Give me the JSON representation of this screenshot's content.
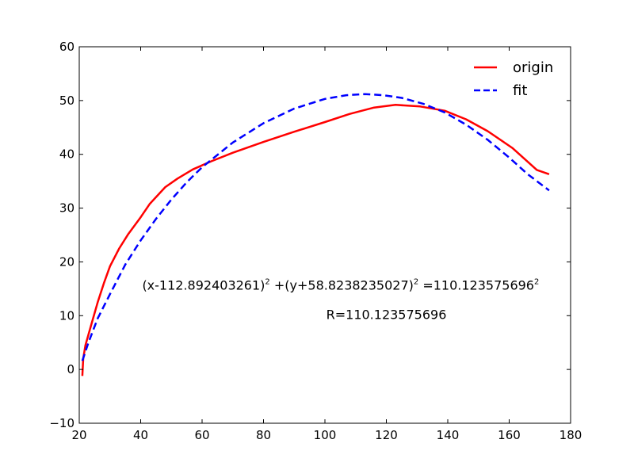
{
  "chart_data": {
    "type": "line",
    "title": "",
    "xlabel": "",
    "ylabel": "",
    "xlim": [
      20,
      180
    ],
    "ylim": [
      -10,
      60
    ],
    "xticks": [
      20,
      40,
      60,
      80,
      100,
      120,
      140,
      160,
      180
    ],
    "yticks": [
      -10,
      0,
      10,
      20,
      30,
      40,
      50,
      60
    ],
    "grid": false,
    "legend_position": "top-right",
    "series": [
      {
        "name": "origin",
        "color": "#ff0000",
        "style": "solid",
        "points": [
          [
            21,
            -1.2
          ],
          [
            21.3,
            2
          ],
          [
            22,
            4.5
          ],
          [
            24,
            8.5
          ],
          [
            26,
            12.5
          ],
          [
            28,
            16
          ],
          [
            30,
            19.2
          ],
          [
            33,
            22.5
          ],
          [
            36,
            25.2
          ],
          [
            40,
            28.3
          ],
          [
            43,
            30.8
          ],
          [
            48,
            33.9
          ],
          [
            52,
            35.5
          ],
          [
            57,
            37.2
          ],
          [
            63,
            38.7
          ],
          [
            70,
            40.3
          ],
          [
            80,
            42.3
          ],
          [
            90,
            44.2
          ],
          [
            100,
            46
          ],
          [
            108,
            47.5
          ],
          [
            116,
            48.7
          ],
          [
            123,
            49.2
          ],
          [
            131,
            48.9
          ],
          [
            139,
            48.1
          ],
          [
            146,
            46.5
          ],
          [
            153,
            44.3
          ],
          [
            161,
            41.2
          ],
          [
            169,
            37.1
          ],
          [
            173,
            36.3
          ]
        ]
      },
      {
        "name": "fit",
        "color": "#0000ff",
        "style": "dashed",
        "points": [
          [
            21,
            1.6
          ],
          [
            23,
            5
          ],
          [
            26,
            9.5
          ],
          [
            30,
            14
          ],
          [
            35,
            19.5
          ],
          [
            40,
            24
          ],
          [
            45,
            28
          ],
          [
            50,
            31.6
          ],
          [
            55,
            34.8
          ],
          [
            60,
            37.6
          ],
          [
            70,
            42.2
          ],
          [
            80,
            45.8
          ],
          [
            90,
            48.5
          ],
          [
            100,
            50.3
          ],
          [
            107,
            51
          ],
          [
            113,
            51.2
          ],
          [
            119,
            51
          ],
          [
            125,
            50.5
          ],
          [
            132,
            49.4
          ],
          [
            139,
            47.8
          ],
          [
            146,
            45.5
          ],
          [
            153,
            42.7
          ],
          [
            160,
            39.4
          ],
          [
            166,
            36.3
          ],
          [
            173,
            33.3
          ]
        ]
      }
    ],
    "annotations": [
      {
        "parts": [
          "(x-112.892403261)",
          "2",
          " +(y+58.8238235027)",
          "2",
          " =110.123575696",
          "2"
        ],
        "at": [
          40.5,
          15.7
        ],
        "anchor": "start"
      },
      {
        "text": "R=110.123575696",
        "at": [
          120,
          10.3
        ],
        "anchor": "middle"
      }
    ]
  }
}
